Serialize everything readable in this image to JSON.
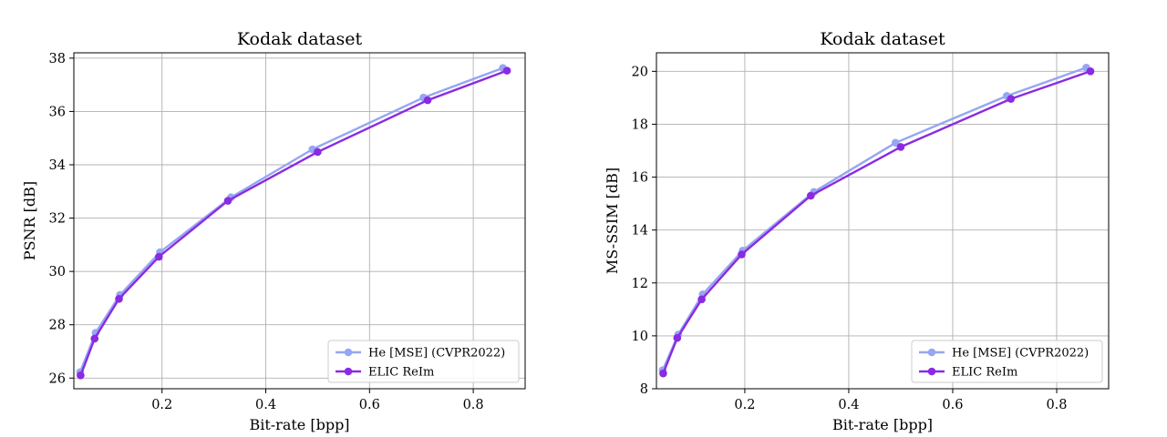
{
  "chart_data": [
    {
      "type": "line",
      "title": "Kodak dataset",
      "xlabel": "Bit-rate [bpp]",
      "ylabel": "PSNR [dB]",
      "xlim": [
        0.03,
        0.9
      ],
      "ylim": [
        25.6,
        38.2
      ],
      "xticks": [
        0.2,
        0.4,
        0.6,
        0.8
      ],
      "yticks": [
        26,
        28,
        30,
        32,
        34,
        36,
        38
      ],
      "grid": true,
      "legend_position": "lower-right",
      "series": [
        {
          "name": "He [MSE] (CVPR2022)",
          "color": "#96a6f2",
          "x": [
            0.042,
            0.072,
            0.119,
            0.196,
            0.333,
            0.49,
            0.704,
            0.857
          ],
          "y": [
            26.22,
            27.7,
            29.12,
            30.72,
            32.78,
            34.58,
            36.52,
            37.63
          ]
        },
        {
          "name": "ELIC ReIm",
          "color": "#8a2be2",
          "x": [
            0.043,
            0.07,
            0.117,
            0.194,
            0.327,
            0.5,
            0.712,
            0.865
          ],
          "y": [
            26.1,
            27.48,
            28.97,
            30.55,
            32.65,
            34.48,
            36.42,
            37.53
          ]
        }
      ]
    },
    {
      "type": "line",
      "title": "Kodak dataset",
      "xlabel": "Bit-rate [bpp]",
      "ylabel": "MS-SSIM [dB]",
      "xlim": [
        0.03,
        0.9
      ],
      "ylim": [
        8.0,
        20.7
      ],
      "xticks": [
        0.2,
        0.4,
        0.6,
        0.8
      ],
      "yticks": [
        8,
        10,
        12,
        14,
        16,
        18,
        20
      ],
      "grid": true,
      "legend_position": "lower-right",
      "series": [
        {
          "name": "He [MSE] (CVPR2022)",
          "color": "#96a6f2",
          "x": [
            0.042,
            0.072,
            0.119,
            0.196,
            0.333,
            0.49,
            0.704,
            0.857
          ],
          "y": [
            8.7,
            10.05,
            11.57,
            13.22,
            15.44,
            17.3,
            19.07,
            20.14
          ]
        },
        {
          "name": "ELIC ReIm",
          "color": "#8a2be2",
          "x": [
            0.043,
            0.07,
            0.117,
            0.194,
            0.327,
            0.5,
            0.712,
            0.865
          ],
          "y": [
            8.58,
            9.92,
            11.38,
            13.08,
            15.3,
            17.14,
            18.96,
            20.0
          ]
        }
      ]
    }
  ]
}
